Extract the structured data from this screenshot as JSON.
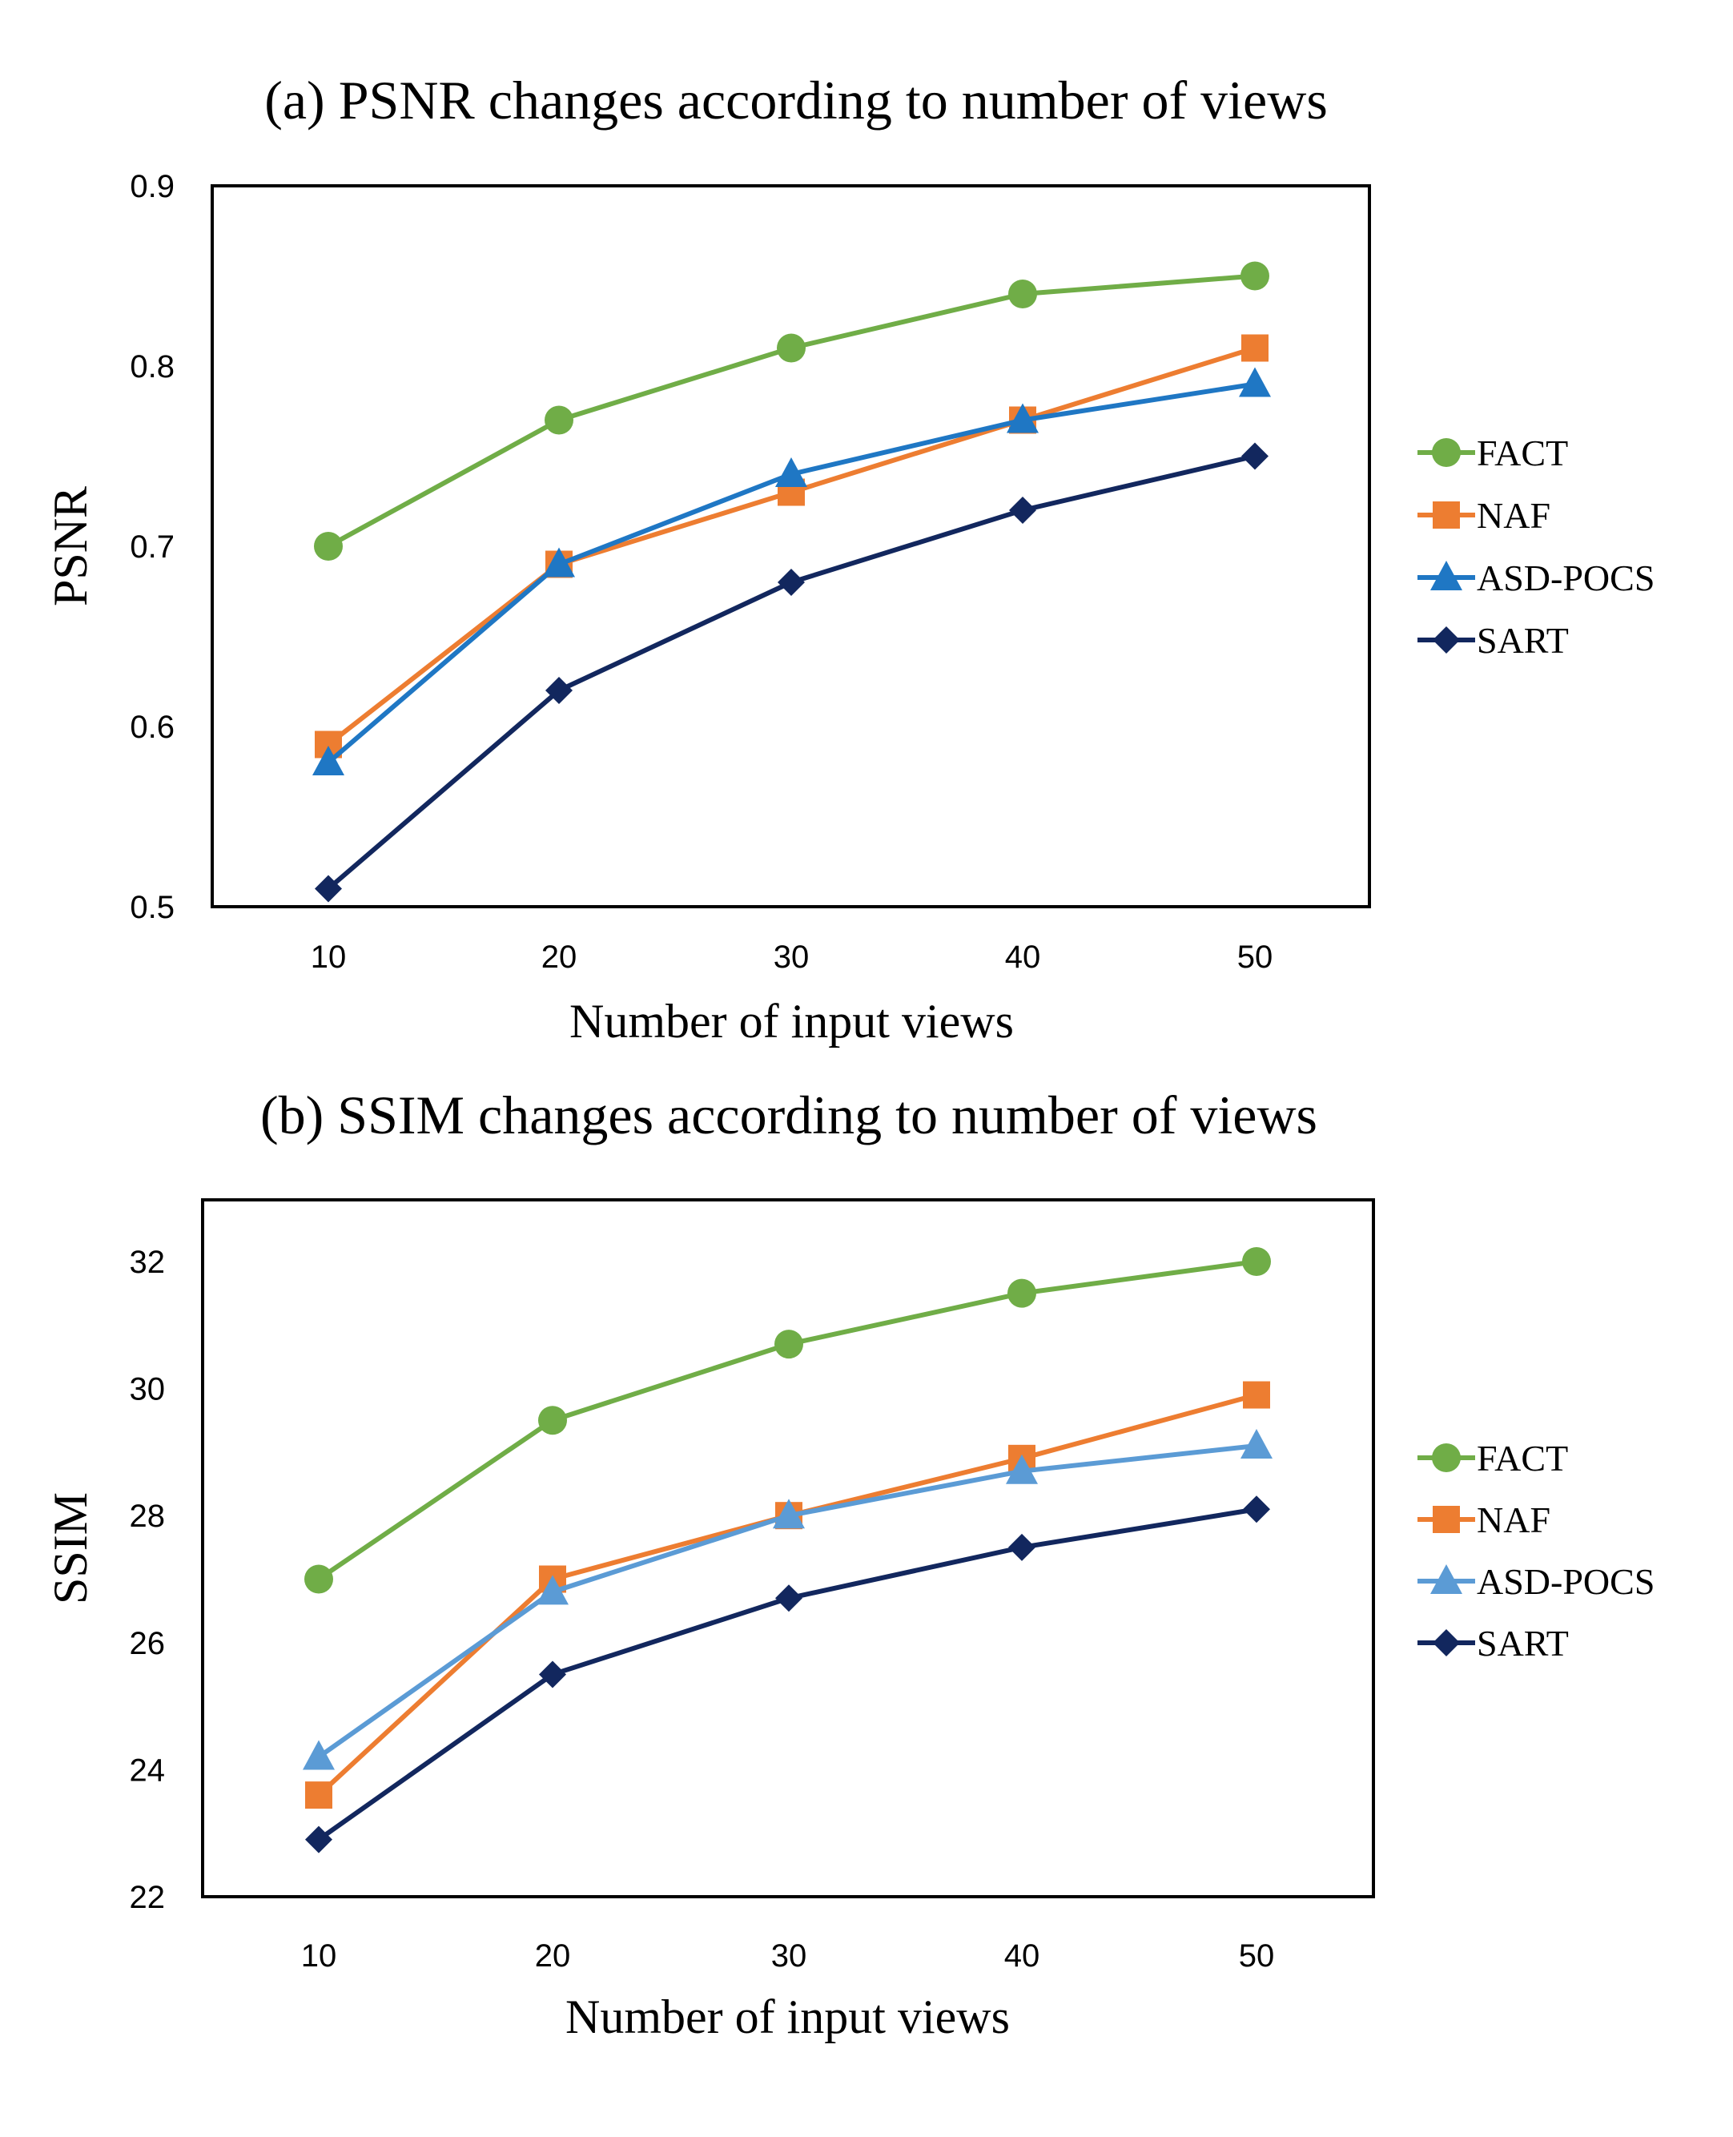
{
  "chart_data": [
    {
      "type": "line",
      "title": "(a) PSNR changes according to number of views",
      "xlabel": "Number of input views",
      "ylabel": "PSNR",
      "categories": [
        "10",
        "20",
        "30",
        "40",
        "50"
      ],
      "ylim": [
        0.5,
        0.9
      ],
      "yticks": [
        "0.5",
        "0.6",
        "0.7",
        "0.8",
        "0.9"
      ],
      "grid": false,
      "legend": "right",
      "series": [
        {
          "name": "FACT",
          "values": [
            0.7,
            0.77,
            0.81,
            0.84,
            0.85
          ],
          "color": "#70AD47",
          "marker": "circle"
        },
        {
          "name": "NAF",
          "values": [
            0.59,
            0.69,
            0.73,
            0.77,
            0.81
          ],
          "color": "#ED7D31",
          "marker": "square"
        },
        {
          "name": "ASD-POCS",
          "values": [
            0.58,
            0.69,
            0.74,
            0.77,
            0.79
          ],
          "color": "#1F77C4",
          "marker": "triangle"
        },
        {
          "name": "SART",
          "values": [
            0.51,
            0.62,
            0.68,
            0.72,
            0.75
          ],
          "color": "#12275E",
          "marker": "diamond"
        }
      ]
    },
    {
      "type": "line",
      "title": "(b) SSIM changes according to number of views",
      "xlabel": "Number of input views",
      "ylabel": "SSIM",
      "categories": [
        "10",
        "20",
        "30",
        "40",
        "50"
      ],
      "ylim": [
        22,
        33
      ],
      "yticks": [
        "22",
        "24",
        "26",
        "28",
        "30",
        "32"
      ],
      "grid": false,
      "legend": "right",
      "series": [
        {
          "name": "FACT",
          "values": [
            27.0,
            29.5,
            30.7,
            31.5,
            32.0
          ],
          "color": "#70AD47",
          "marker": "circle"
        },
        {
          "name": "NAF",
          "values": [
            23.6,
            27.0,
            28.0,
            28.9,
            29.9
          ],
          "color": "#ED7D31",
          "marker": "square"
        },
        {
          "name": "ASD-POCS",
          "values": [
            24.2,
            26.8,
            28.0,
            28.7,
            29.1
          ],
          "color": "#5B9BD5",
          "marker": "triangle"
        },
        {
          "name": "SART",
          "values": [
            22.9,
            25.5,
            26.7,
            27.5,
            28.1
          ],
          "color": "#12275E",
          "marker": "diamond"
        }
      ]
    }
  ]
}
